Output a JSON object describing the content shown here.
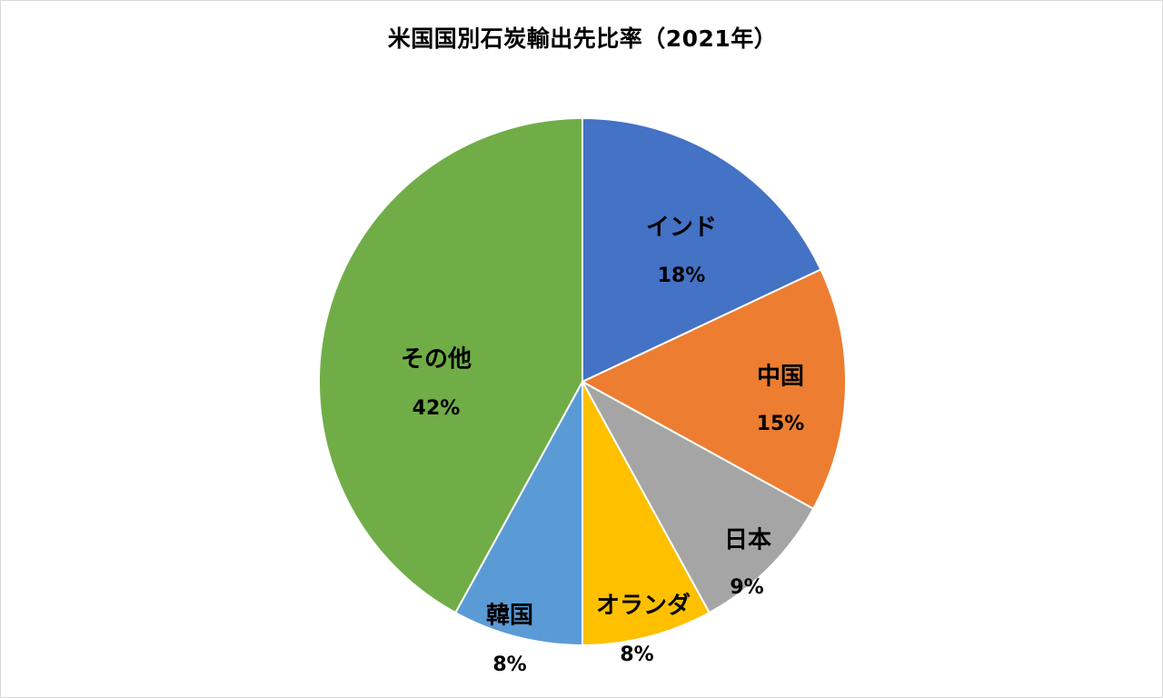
{
  "chart_data": {
    "type": "pie",
    "title": "米国国別石炭輸出先比率（2021年）",
    "start_angle_deg": 0,
    "direction": "clockwise",
    "slices": [
      {
        "name": "インド",
        "value": 18,
        "label": "18%",
        "color": "#4472C4"
      },
      {
        "name": "中国",
        "value": 15,
        "label": "15%",
        "color": "#ED7D31"
      },
      {
        "name": "日本",
        "value": 9,
        "label": "9%",
        "color": "#A5A5A5"
      },
      {
        "name": "オランダ",
        "value": 8,
        "label": "8%",
        "color": "#FFC000"
      },
      {
        "name": "韓国",
        "value": 8,
        "label": "8%",
        "color": "#5B9BD5"
      },
      {
        "name": "その他",
        "value": 42,
        "label": "42%",
        "color": "#70AD47"
      }
    ]
  }
}
